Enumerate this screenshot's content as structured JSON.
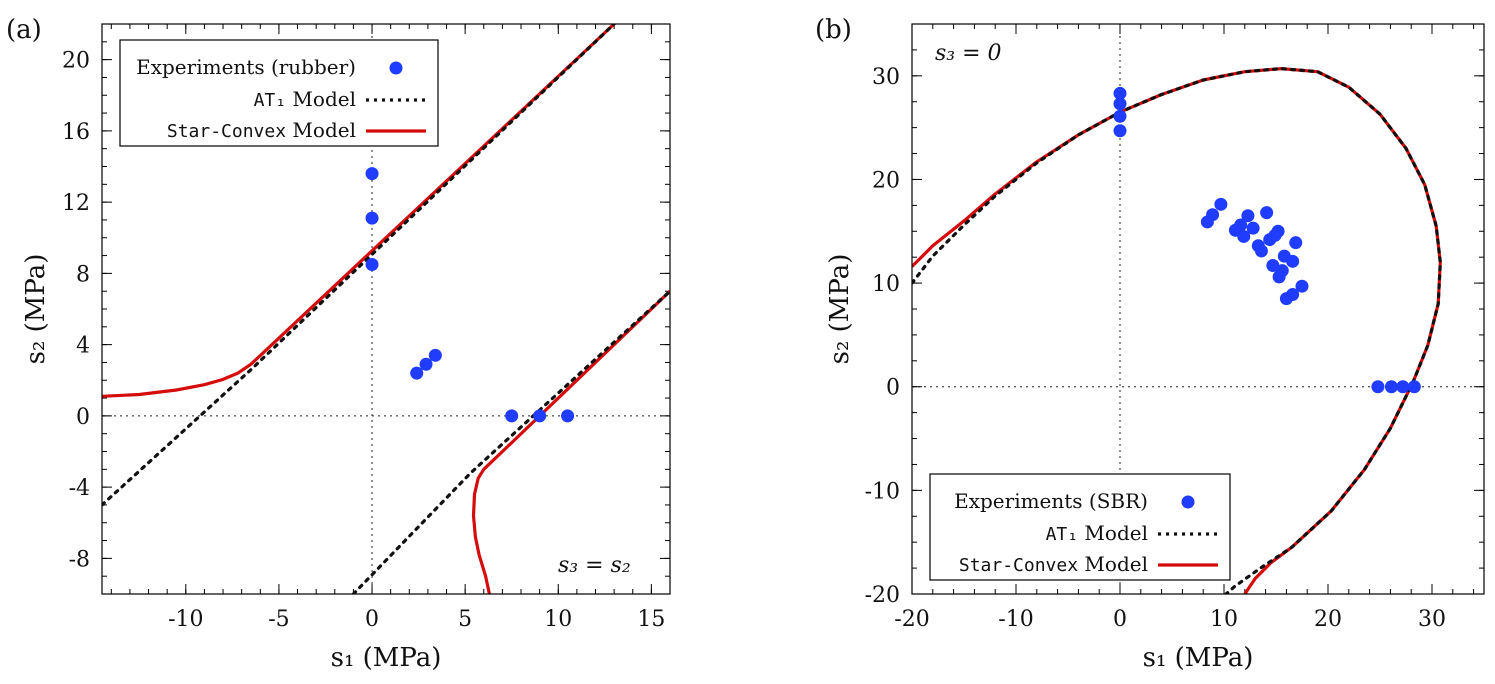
{
  "colors": {
    "experiments": "#1f3cff",
    "at1": "#111111",
    "starconvex": "#d40c0c",
    "axes": "#000000"
  },
  "chart_data": [
    {
      "type": "scatter",
      "panel_label": "(a)",
      "condition_label": "s₃ = s₂",
      "xlabel": "s₁ (MPa)",
      "ylabel": "s₂ (MPa)",
      "xlim": [
        -14.5,
        16
      ],
      "ylim": [
        -10,
        22
      ],
      "xticks": [
        -10,
        -5,
        0,
        5,
        10,
        15
      ],
      "yticks": [
        -8,
        -4,
        0,
        4,
        8,
        12,
        16,
        20
      ],
      "legend_position": "top-left",
      "legend": {
        "experiments": "Experiments (rubber)",
        "at1_name": "AT₁",
        "starconvex_name": "Star-Convex",
        "model_word": "Model"
      },
      "experiments": [
        [
          0,
          13.6
        ],
        [
          0,
          11.1
        ],
        [
          0,
          8.5
        ],
        [
          2.4,
          2.4
        ],
        [
          2.9,
          2.9
        ],
        [
          3.4,
          3.4
        ],
        [
          7.5,
          0
        ],
        [
          9.0,
          0
        ],
        [
          10.5,
          0
        ]
      ],
      "at1_curves": [
        [
          [
            -14.5,
            -5.0
          ],
          [
            -6.5,
            2.6
          ],
          [
            13.0,
            22.0
          ]
        ],
        [
          [
            -1.0,
            -10.0
          ],
          [
            5.3,
            -3.2
          ],
          [
            16.0,
            7.0
          ]
        ]
      ],
      "starconvex_curves": [
        [
          [
            -14.5,
            1.1
          ],
          [
            -12.5,
            1.2
          ],
          [
            -10.5,
            1.45
          ],
          [
            -9.0,
            1.75
          ],
          [
            -8.0,
            2.05
          ],
          [
            -7.2,
            2.4
          ],
          [
            -6.5,
            2.9
          ],
          [
            13.0,
            22.0
          ]
        ],
        [
          [
            6.3,
            -10.0
          ],
          [
            6.1,
            -9.0
          ],
          [
            5.75,
            -7.8
          ],
          [
            5.55,
            -6.8
          ],
          [
            5.45,
            -5.6
          ],
          [
            5.5,
            -4.4
          ],
          [
            5.7,
            -3.5
          ],
          [
            6.0,
            -3.0
          ],
          [
            16.0,
            7.0
          ]
        ]
      ]
    },
    {
      "type": "scatter",
      "panel_label": "(b)",
      "condition_label": "s₃ = 0",
      "xlabel": "s₁ (MPa)",
      "ylabel": "s₂ (MPa)",
      "xlim": [
        -20,
        35
      ],
      "ylim": [
        -20,
        35
      ],
      "xticks": [
        -20,
        -10,
        0,
        10,
        20,
        30
      ],
      "yticks": [
        -20,
        -10,
        0,
        10,
        20,
        30
      ],
      "legend_position": "bottom-left",
      "legend": {
        "experiments": "Experiments (SBR)",
        "at1_name": "AT₁",
        "starconvex_name": "Star-Convex",
        "model_word": "Model"
      },
      "experiments": [
        [
          0,
          28.3
        ],
        [
          0,
          27.3
        ],
        [
          0,
          26.1
        ],
        [
          0,
          24.7
        ],
        [
          24.8,
          0
        ],
        [
          26.1,
          0
        ],
        [
          27.2,
          0
        ],
        [
          28.3,
          0
        ],
        [
          8.4,
          15.9
        ],
        [
          8.9,
          16.6
        ],
        [
          9.7,
          17.6
        ],
        [
          11.1,
          15.1
        ],
        [
          11.6,
          15.6
        ],
        [
          11.9,
          14.5
        ],
        [
          12.3,
          16.5
        ],
        [
          12.8,
          15.3
        ],
        [
          13.3,
          13.6
        ],
        [
          13.6,
          13.1
        ],
        [
          14.1,
          16.8
        ],
        [
          14.4,
          14.2
        ],
        [
          14.7,
          11.7
        ],
        [
          14.9,
          14.6
        ],
        [
          15.2,
          15.0
        ],
        [
          15.3,
          10.6
        ],
        [
          15.6,
          11.2
        ],
        [
          15.8,
          12.6
        ],
        [
          16.0,
          8.5
        ],
        [
          16.6,
          12.1
        ],
        [
          16.6,
          8.9
        ],
        [
          16.9,
          13.9
        ],
        [
          17.5,
          9.7
        ]
      ],
      "at1_curves": [
        [
          [
            -20,
            10.0
          ],
          [
            -18,
            12.6
          ],
          [
            -15,
            15.6
          ],
          [
            -12,
            18.4
          ],
          [
            -8,
            21.6
          ],
          [
            -4,
            24.3
          ],
          [
            0,
            26.5
          ],
          [
            4,
            28.2
          ],
          [
            8,
            29.6
          ],
          [
            12,
            30.4
          ],
          [
            15.5,
            30.7
          ],
          [
            19,
            30.4
          ],
          [
            22,
            28.9
          ],
          [
            25,
            26.3
          ],
          [
            27.5,
            23.0
          ],
          [
            29.3,
            19.5
          ],
          [
            30.4,
            15.5
          ],
          [
            30.8,
            12.0
          ],
          [
            30.6,
            8.0
          ],
          [
            29.6,
            4.0
          ],
          [
            28.2,
            0.5
          ],
          [
            26.0,
            -4.0
          ],
          [
            23.5,
            -8.0
          ],
          [
            20.3,
            -12.0
          ],
          [
            16.5,
            -15.5
          ],
          [
            13.5,
            -17.5
          ],
          [
            11.0,
            -19.3
          ],
          [
            10.2,
            -20.0
          ]
        ]
      ],
      "starconvex_curves": [
        [
          [
            -20,
            11.6
          ],
          [
            -18,
            13.6
          ],
          [
            -15,
            16.0
          ],
          [
            -12,
            18.6
          ],
          [
            -8,
            21.7
          ],
          [
            -4,
            24.3
          ],
          [
            0,
            26.5
          ],
          [
            4,
            28.2
          ],
          [
            8,
            29.6
          ],
          [
            12,
            30.4
          ],
          [
            15.5,
            30.7
          ],
          [
            19,
            30.4
          ],
          [
            22,
            28.9
          ],
          [
            25,
            26.3
          ],
          [
            27.5,
            23.0
          ],
          [
            29.3,
            19.5
          ],
          [
            30.4,
            15.5
          ],
          [
            30.8,
            12.0
          ],
          [
            30.6,
            8.0
          ],
          [
            29.6,
            4.0
          ],
          [
            28.2,
            0.5
          ],
          [
            26.0,
            -4.0
          ],
          [
            23.5,
            -8.0
          ],
          [
            20.3,
            -12.0
          ],
          [
            16.5,
            -15.5
          ],
          [
            14.5,
            -17.0
          ],
          [
            13.0,
            -18.5
          ],
          [
            12.0,
            -20.0
          ]
        ]
      ]
    }
  ]
}
